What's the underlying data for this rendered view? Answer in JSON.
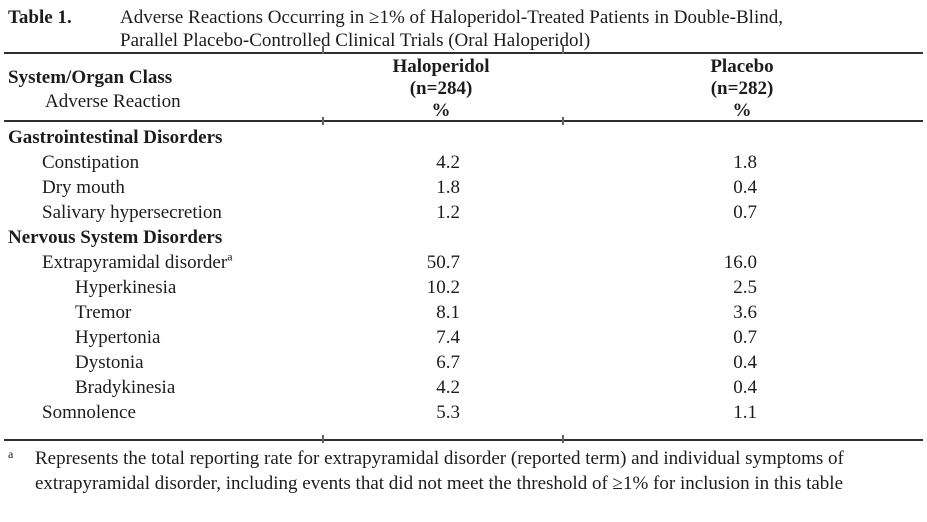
{
  "colors": {
    "background": "#ffffff",
    "text": "#1c1c1c",
    "rule": "#2f2f2f"
  },
  "table": {
    "caption": {
      "label": "Table 1.",
      "title_lines": [
        "Adverse Reactions Occurring in ≥1% of Haloperidol-Treated Patients in Double-Blind,",
        "Parallel Placebo-Controlled Clinical Trials (Oral Haloperidol)"
      ]
    },
    "header": {
      "col1": [
        "System/Organ Class",
        "Adverse Reaction"
      ],
      "col2": [
        "Haloperidol",
        "(n=284)",
        "%"
      ],
      "col3": [
        "Placebo",
        "(n=282)",
        "%"
      ]
    },
    "rows": [
      {
        "label": "Gastrointestinal Disorders",
        "indent": 0,
        "bold": true,
        "haloperidol": "",
        "placebo": ""
      },
      {
        "label": "Constipation",
        "indent": 1,
        "bold": false,
        "haloperidol": "4.2",
        "placebo": "1.8"
      },
      {
        "label": "Dry mouth",
        "indent": 1,
        "bold": false,
        "haloperidol": "1.8",
        "placebo": "0.4"
      },
      {
        "label": "Salivary hypersecretion",
        "indent": 1,
        "bold": false,
        "haloperidol": "1.2",
        "placebo": "0.7"
      },
      {
        "label": "Nervous System Disorders",
        "indent": 0,
        "bold": true,
        "haloperidol": "",
        "placebo": ""
      },
      {
        "label": "Extrapyramidal disorder",
        "sup": "a",
        "indent": 1,
        "bold": false,
        "haloperidol": "50.7",
        "placebo": "16.0"
      },
      {
        "label": "Hyperkinesia",
        "indent": 2,
        "bold": false,
        "haloperidol": "10.2",
        "placebo": "2.5"
      },
      {
        "label": "Tremor",
        "indent": 2,
        "bold": false,
        "haloperidol": "8.1",
        "placebo": "3.6"
      },
      {
        "label": "Hypertonia",
        "indent": 2,
        "bold": false,
        "haloperidol": "7.4",
        "placebo": "0.7"
      },
      {
        "label": "Dystonia",
        "indent": 2,
        "bold": false,
        "haloperidol": "6.7",
        "placebo": "0.4"
      },
      {
        "label": "Bradykinesia",
        "indent": 2,
        "bold": false,
        "haloperidol": "4.2",
        "placebo": "0.4"
      },
      {
        "label": "Somnolence",
        "indent": 1,
        "bold": false,
        "haloperidol": "5.3",
        "placebo": "1.1"
      }
    ],
    "footnote": {
      "marker": "a",
      "text": "Represents the total reporting rate for extrapyramidal disorder (reported term) and individual symptoms of extrapyramidal disorder, including events that did not meet the threshold of ≥1% for inclusion in this table"
    }
  }
}
